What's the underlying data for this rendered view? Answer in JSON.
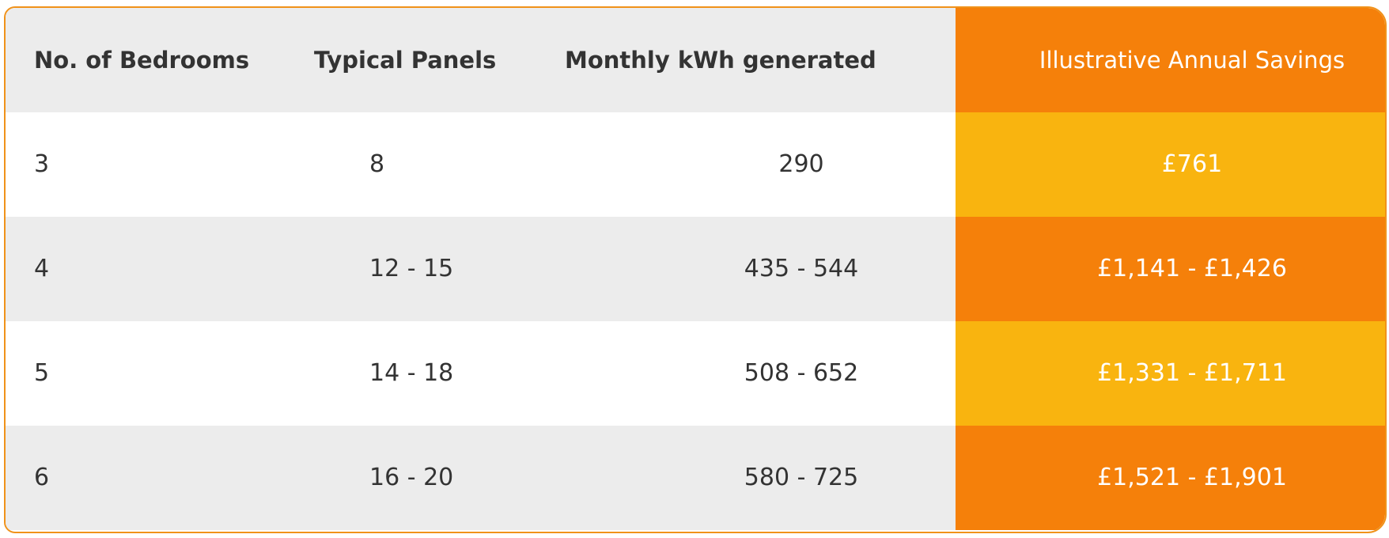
{
  "table": {
    "header": [
      "No. of Bedrooms",
      "Typical Panels",
      "Monthly kWh generated",
      "Illustrative Annual Savings"
    ],
    "rows": [
      [
        "3",
        "8",
        "290",
        "£761"
      ],
      [
        "4",
        "12 - 15",
        "435 - 544",
        "£1,141 - £1,426"
      ],
      [
        "5",
        "14 - 18",
        "508 - 652",
        "£1,331 - £1,711"
      ],
      [
        "6",
        "16 - 20",
        "580 - 725",
        "£1,521 - £1,901"
      ]
    ]
  }
}
